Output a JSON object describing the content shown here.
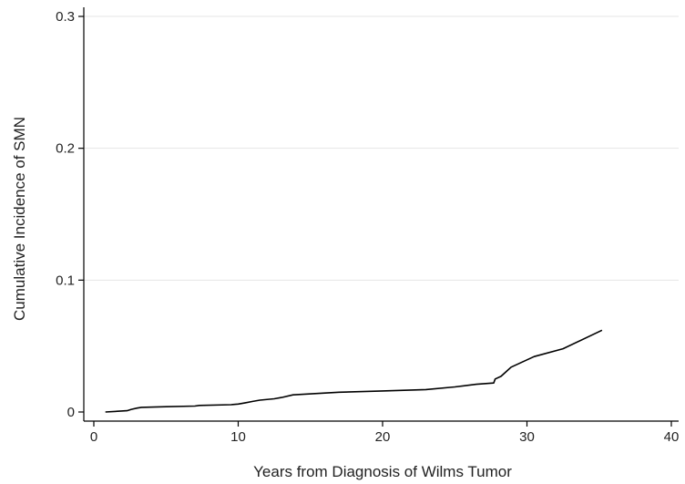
{
  "chart_data": {
    "type": "line",
    "title": "",
    "xlabel": "Years from Diagnosis of Wilms Tumor",
    "ylabel": "Cumulative Incidence of SMN",
    "xlim": [
      0,
      40
    ],
    "ylim": [
      0,
      0.3
    ],
    "xticks": [
      0,
      10,
      20,
      30,
      40
    ],
    "yticks": [
      0,
      0.1,
      0.2,
      0.3
    ],
    "xtick_labels": [
      "0",
      "10",
      "20",
      "30",
      "40"
    ],
    "ytick_labels": [
      "0",
      "0.1",
      "0.2",
      "0.3"
    ],
    "grid": "horizontal",
    "line_color": "#000000",
    "grid_color": "#e6e6e6",
    "series": [
      {
        "x": [
          0.8,
          2.3,
          2.6,
          3.0,
          3.3,
          5.0,
          7.0,
          7.3,
          9.5,
          10.0,
          10.5,
          11.0,
          11.5,
          12.5,
          13.0,
          13.8,
          17.0,
          20.0,
          23.0,
          25.0,
          26.5,
          27.7,
          27.8,
          28.2,
          28.5,
          28.9,
          30.5,
          32.5,
          35.2
        ],
        "y": [
          0.0,
          0.001,
          0.002,
          0.003,
          0.0035,
          0.004,
          0.0045,
          0.005,
          0.0055,
          0.006,
          0.007,
          0.008,
          0.009,
          0.01,
          0.011,
          0.013,
          0.015,
          0.016,
          0.017,
          0.019,
          0.021,
          0.022,
          0.025,
          0.027,
          0.03,
          0.034,
          0.042,
          0.048,
          0.062
        ]
      }
    ]
  }
}
